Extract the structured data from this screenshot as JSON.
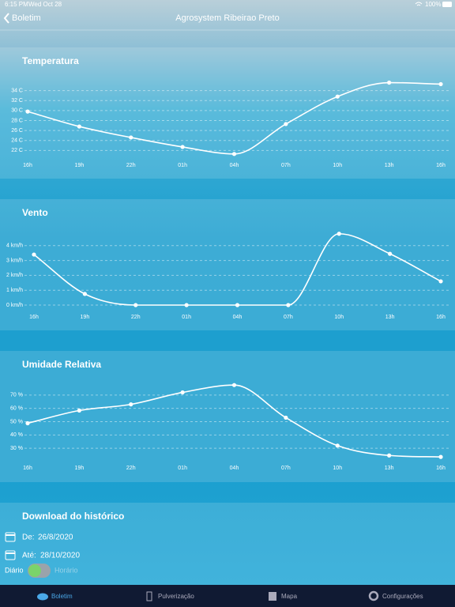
{
  "status_bar": {
    "time": "6:15 PM",
    "date": "Wed Oct 28",
    "battery": "100%"
  },
  "nav_bar": {
    "back": "Boletim",
    "title": "Agrosystem Ribeirao Preto"
  },
  "chart_data": [
    {
      "type": "line",
      "title": "Temperatura",
      "categories": [
        "16h",
        "19h",
        "22h",
        "01h",
        "04h",
        "07h",
        "10h",
        "13h",
        "16h"
      ],
      "values": [
        29.8,
        26.8,
        24.6,
        22.7,
        21.3,
        27.3,
        32.8,
        35.6,
        35.3
      ],
      "color": "#ffffff",
      "ylim": [
        20,
        36
      ],
      "yticks": [
        {
          "value": 22,
          "label": "22 C"
        },
        {
          "value": 24,
          "label": "24 C"
        },
        {
          "value": 26,
          "label": "26 C"
        },
        {
          "value": 28,
          "label": "28 C"
        },
        {
          "value": 30,
          "label": "30 C"
        },
        {
          "value": 32,
          "label": "32 C"
        },
        {
          "value": 34,
          "label": "34 C"
        }
      ],
      "grid": true
    },
    {
      "type": "line",
      "title": "Vento",
      "categories": [
        "16h",
        "19h",
        "22h",
        "01h",
        "04h",
        "07h",
        "10h",
        "13h",
        "16h"
      ],
      "values": [
        3.4,
        0.75,
        0,
        0,
        0,
        0,
        4.8,
        3.45,
        1.6
      ],
      "color": "#ffffff",
      "ylim": [
        0,
        5
      ],
      "yticks": [
        {
          "value": 0,
          "label": "0 km/h"
        },
        {
          "value": 1,
          "label": "1 km/h"
        },
        {
          "value": 2,
          "label": "2 km/h"
        },
        {
          "value": 3,
          "label": "3 km/h"
        },
        {
          "value": 4,
          "label": "4 km/h"
        }
      ],
      "grid": true
    },
    {
      "type": "line",
      "title": "Umidade Relativa",
      "categories": [
        "16h",
        "19h",
        "22h",
        "01h",
        "04h",
        "07h",
        "10h",
        "13h",
        "16h"
      ],
      "values": [
        48.8,
        58.4,
        63,
        72,
        77.5,
        53,
        32,
        24.6,
        23.5
      ],
      "color": "#ffffff",
      "ylim": [
        20,
        80
      ],
      "yticks": [
        {
          "value": 30,
          "label": "30 %"
        },
        {
          "value": 40,
          "label": "40 %"
        },
        {
          "value": 50,
          "label": "50 %"
        },
        {
          "value": 60,
          "label": "60 %"
        },
        {
          "value": 70,
          "label": "70 %"
        }
      ],
      "grid": true
    }
  ],
  "download": {
    "title": "Download do histórico",
    "from_label": "De:",
    "from_date": "26/8/2020",
    "to_label": "Até:",
    "to_date": "28/10/2020",
    "left_option": "Diário",
    "right_option": "Horário"
  },
  "tab_bar": {
    "tabs": [
      "Boletim",
      "Pulverização",
      "Mapa",
      "Configurações"
    ]
  }
}
